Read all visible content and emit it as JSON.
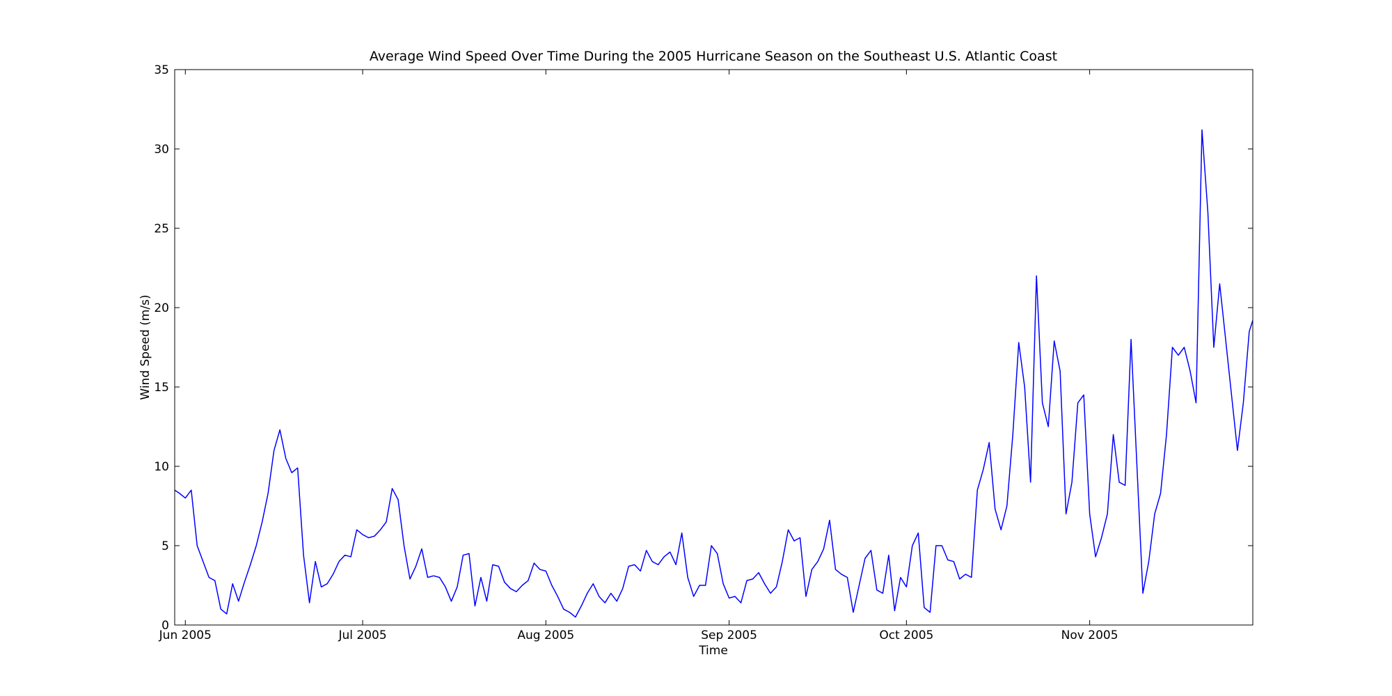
{
  "chart_data": {
    "type": "line",
    "title": "Average Wind Speed Over Time During the 2005 Hurricane Season on the Southeast U.S. Atlantic Coast",
    "xlabel": "Time",
    "ylabel": "Wind Speed (m/s)",
    "color": "#0000ff",
    "xlim": [
      150.2,
      332.6
    ],
    "ylim": [
      0,
      35
    ],
    "xticks": [
      {
        "value": 152,
        "label": "Jun 2005"
      },
      {
        "value": 182,
        "label": "Jul 2005"
      },
      {
        "value": 213,
        "label": "Aug 2005"
      },
      {
        "value": 244,
        "label": "Sep 2005"
      },
      {
        "value": 274,
        "label": "Oct 2005"
      },
      {
        "value": 305,
        "label": "Nov 2005"
      }
    ],
    "yticks": [
      0,
      5,
      10,
      15,
      20,
      25,
      30,
      35
    ],
    "x": [
      150.2,
      151,
      152,
      153,
      154,
      155,
      156,
      157,
      158,
      159,
      160,
      161,
      162,
      163,
      164,
      165,
      166,
      167,
      168,
      169,
      170,
      171,
      172,
      173,
      174,
      175,
      176,
      177,
      178,
      179,
      180,
      181,
      182,
      183,
      184,
      185,
      186,
      187,
      188,
      189,
      190,
      191,
      192,
      193,
      194,
      195,
      196,
      197,
      198,
      199,
      200,
      201,
      202,
      203,
      204,
      205,
      206,
      207,
      208,
      209,
      210,
      211,
      212,
      213,
      214,
      215,
      216,
      217,
      218,
      219,
      220,
      221,
      222,
      223,
      224,
      225,
      226,
      227,
      228,
      229,
      230,
      231,
      232,
      233,
      234,
      235,
      236,
      237,
      238,
      239,
      240,
      241,
      242,
      243,
      244,
      245,
      246,
      247,
      248,
      249,
      250,
      251,
      252,
      253,
      254,
      255,
      256,
      257,
      258,
      259,
      260,
      261,
      262,
      263,
      264,
      265,
      266,
      267,
      268,
      269,
      270,
      271,
      272,
      273,
      274,
      275,
      276,
      277,
      278,
      279,
      280,
      281,
      282,
      283,
      284,
      285,
      286,
      287,
      288,
      289,
      290,
      291,
      292,
      293,
      294,
      295,
      296,
      297,
      298,
      299,
      300,
      301,
      302,
      303,
      304,
      305,
      306,
      307,
      308,
      309,
      310,
      311,
      312,
      313,
      314,
      315,
      316,
      317,
      318,
      319,
      320,
      321,
      322,
      323,
      324,
      325,
      326,
      327,
      328,
      329,
      330,
      331,
      332,
      332.6
    ],
    "values": [
      8.5,
      8.3,
      8.0,
      8.5,
      5.0,
      4.0,
      3.0,
      2.8,
      1.0,
      0.7,
      2.6,
      1.5,
      2.7,
      3.8,
      5.0,
      6.5,
      8.3,
      11.0,
      12.3,
      10.5,
      9.6,
      9.9,
      4.4,
      1.4,
      4.0,
      2.4,
      2.6,
      3.2,
      4.0,
      4.4,
      4.3,
      6.0,
      5.7,
      5.5,
      5.6,
      6.0,
      6.5,
      8.6,
      7.9,
      5.0,
      2.9,
      3.7,
      4.8,
      3.0,
      3.1,
      3.0,
      2.4,
      1.5,
      2.4,
      4.4,
      4.5,
      1.2,
      3.0,
      1.5,
      3.8,
      3.7,
      2.7,
      2.3,
      2.1,
      2.5,
      2.8,
      3.9,
      3.5,
      3.4,
      2.5,
      1.8,
      1.0,
      0.8,
      0.5,
      1.2,
      2.0,
      2.6,
      1.8,
      1.4,
      2.0,
      1.5,
      2.3,
      3.7,
      3.8,
      3.4,
      4.7,
      4.0,
      3.8,
      4.3,
      4.6,
      3.8,
      5.8,
      3.0,
      1.8,
      2.5,
      2.5,
      5.0,
      4.5,
      2.6,
      1.7,
      1.8,
      1.4,
      2.8,
      2.9,
      3.3,
      2.6,
      2.0,
      2.4,
      4.0,
      6.0,
      5.3,
      5.5,
      1.8,
      3.5,
      4.0,
      4.8,
      6.6,
      3.5,
      3.2,
      3.0,
      0.8,
      2.5,
      4.2,
      4.7,
      2.2,
      2.0,
      4.4,
      0.9,
      3.0,
      2.4,
      5.0,
      5.8,
      1.1,
      0.8,
      5.0,
      5.0,
      4.1,
      4.0,
      2.9,
      3.2,
      3.0,
      8.5,
      9.8,
      11.5,
      7.3,
      6.0,
      7.5,
      12.0,
      17.8,
      15.0,
      9.0,
      22.0,
      14.0,
      12.5,
      17.9,
      16.0,
      7.0,
      9.0,
      14.0,
      14.5,
      7.0,
      4.3,
      5.5,
      7.0,
      12.0,
      9.0,
      8.8,
      18.0,
      10.0,
      2.0,
      4.0,
      7.0,
      8.3,
      12.0,
      17.5,
      17.0,
      17.5,
      16.0,
      14.0,
      31.2,
      26.0,
      17.5,
      21.5,
      18.0,
      14.5,
      11.0,
      14.0,
      18.5,
      19.2
    ]
  }
}
